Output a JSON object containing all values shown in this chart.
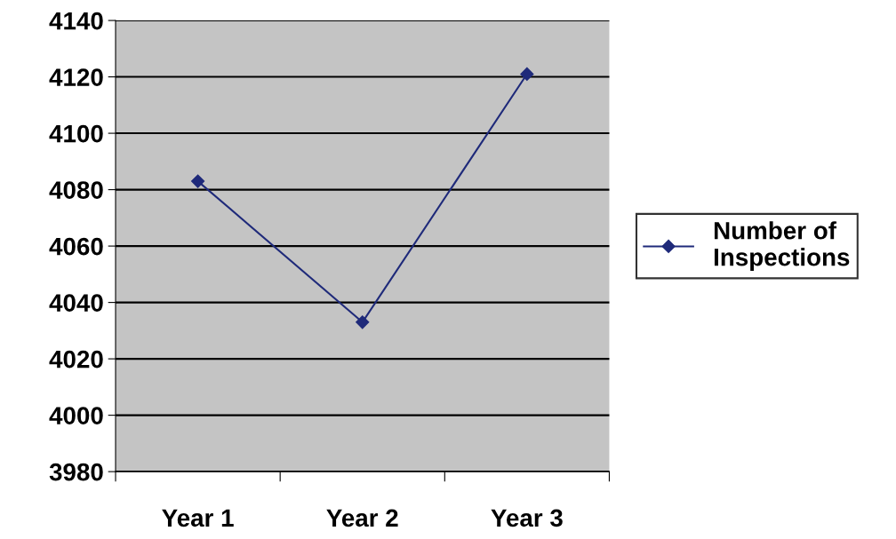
{
  "chart_data": {
    "type": "line",
    "categories": [
      "Year 1",
      "Year 2",
      "Year 3"
    ],
    "series": [
      {
        "name": "Number of Inspections",
        "color": "#1f2a7a",
        "values": [
          4083,
          4033,
          4121
        ]
      }
    ],
    "ylim": [
      3980,
      4140
    ],
    "yticks": [
      3980,
      4000,
      4020,
      4040,
      4060,
      4080,
      4100,
      4120,
      4140
    ],
    "grid": "y",
    "legend": "right",
    "marker": "diamond",
    "line_style": "solid"
  }
}
